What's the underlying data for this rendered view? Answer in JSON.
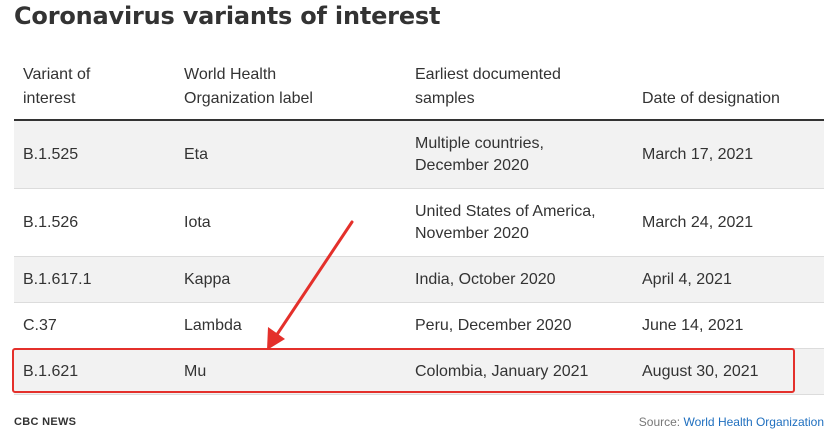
{
  "title": "Coronavirus variants of interest",
  "table": {
    "headers": [
      "Variant of\ninterest",
      "World Health\nOrganization label",
      "Earliest documented\nsamples",
      "Date of designation"
    ],
    "rows": [
      [
        "B.1.525",
        "Eta",
        "Multiple countries,\nDecember 2020",
        "March 17, 2021"
      ],
      [
        "B.1.526",
        "Iota",
        "United States of America,\nNovember 2020",
        "March 24, 2021"
      ],
      [
        "B.1.617.1",
        "Kappa",
        "India, October 2020",
        "April 4, 2021"
      ],
      [
        "C.37",
        "Lambda",
        "Peru, December 2020",
        "June 14, 2021"
      ],
      [
        "B.1.621",
        "Mu",
        "Colombia, January 2021",
        "August 30, 2021"
      ]
    ]
  },
  "annotation": {
    "color": "#e4302b"
  },
  "footer": {
    "brand": "CBC NEWS",
    "source_prefix": "Source: ",
    "source_link": "World Health Organization"
  }
}
